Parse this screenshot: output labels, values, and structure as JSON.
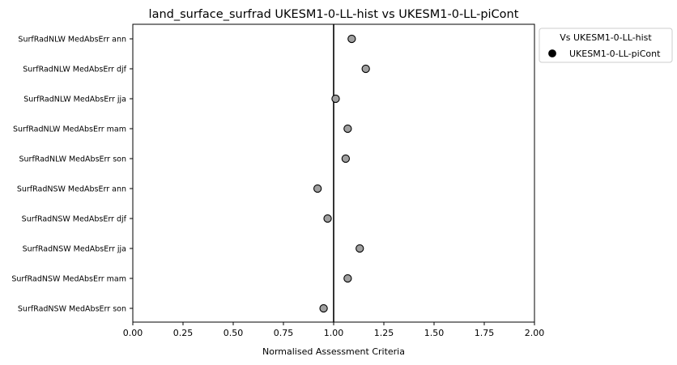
{
  "chart_data": {
    "type": "scatter",
    "title": "land_surface_surfrad UKESM1-0-LL-hist vs UKESM1-0-LL-piCont",
    "xlabel": "Normalised Assessment Criteria",
    "ylabel": "",
    "xlim": [
      0,
      2
    ],
    "x_ticks": [
      "0.00",
      "0.25",
      "0.50",
      "0.75",
      "1.00",
      "1.25",
      "1.50",
      "1.75",
      "2.00"
    ],
    "reference_line_x": 1.0,
    "categories": [
      "SurfRadNLW MedAbsErr ann",
      "SurfRadNLW MedAbsErr djf",
      "SurfRadNLW MedAbsErr jja",
      "SurfRadNLW MedAbsErr mam",
      "SurfRadNLW MedAbsErr son",
      "SurfRadNSW MedAbsErr ann",
      "SurfRadNSW MedAbsErr djf",
      "SurfRadNSW MedAbsErr jja",
      "SurfRadNSW MedAbsErr mam",
      "SurfRadNSW MedAbsErr son"
    ],
    "series": [
      {
        "name": "UKESM1-0-LL-piCont",
        "values": [
          1.09,
          1.16,
          1.01,
          1.07,
          1.06,
          0.92,
          0.97,
          1.13,
          1.07,
          0.95
        ],
        "color": "#a0a0a0"
      }
    ],
    "legend": {
      "title": "Vs UKESM1-0-LL-hist",
      "placement": "outside-right",
      "marker_color": "#000000"
    },
    "grid": false
  }
}
